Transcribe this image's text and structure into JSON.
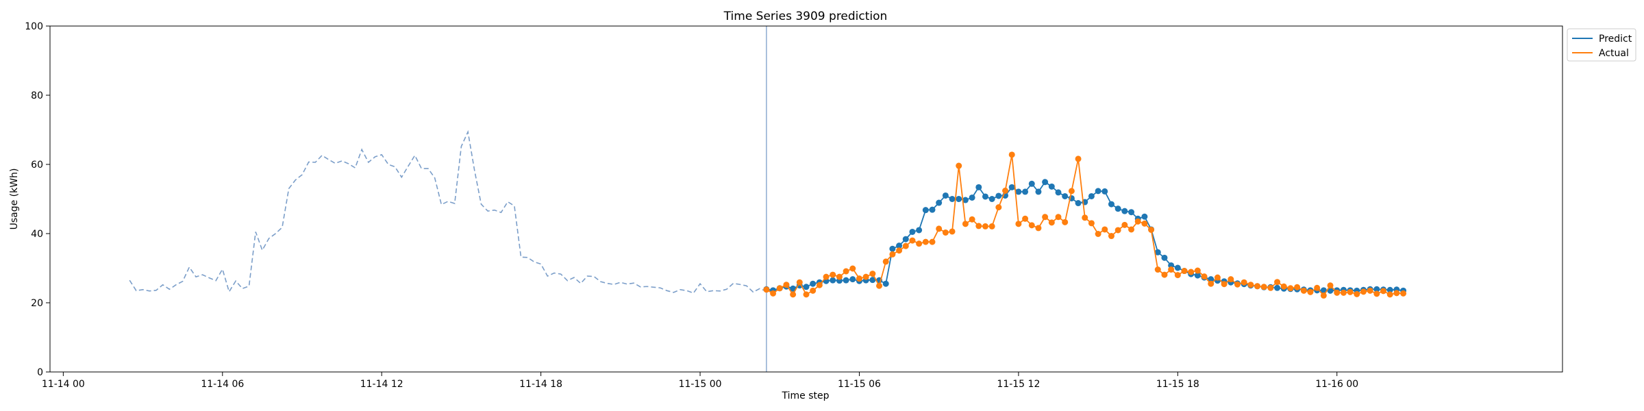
{
  "chart_data": {
    "type": "line",
    "title": "Time Series 3909 prediction",
    "xlabel": "Time step",
    "ylabel": "Usage (kWh)",
    "ylim": [
      0,
      100
    ],
    "xlim": [
      "2023-11-13T23:30",
      "2023-11-16T08:30"
    ],
    "yticks": [
      0,
      20,
      40,
      60,
      80,
      100
    ],
    "xticks": [
      {
        "label": "11-14 00",
        "t": "2023-11-14T00:00"
      },
      {
        "label": "11-14 06",
        "t": "2023-11-14T06:00"
      },
      {
        "label": "11-14 12",
        "t": "2023-11-14T12:00"
      },
      {
        "label": "11-14 18",
        "t": "2023-11-14T18:00"
      },
      {
        "label": "11-15 00",
        "t": "2023-11-15T00:00"
      },
      {
        "label": "11-15 06",
        "t": "2023-11-15T06:00"
      },
      {
        "label": "11-15 12",
        "t": "2023-11-15T12:00"
      },
      {
        "label": "11-15 18",
        "t": "2023-11-15T18:00"
      },
      {
        "label": "11-16 00",
        "t": "2023-11-16T00:00"
      }
    ],
    "grid": false,
    "legend_position": "top-right",
    "forecast_start": "2023-11-15T02:30",
    "history": {
      "start": "2023-11-14T02:30",
      "interval_minutes": 15,
      "color": "#7b9ec9",
      "style": "dashed",
      "values": [
        26.5,
        23.5,
        23.8,
        23.4,
        23.6,
        25.2,
        23.9,
        25.2,
        26.2,
        30.3,
        27.5,
        28.1,
        27.2,
        26.4,
        29.7,
        23.2,
        26.3,
        24.1,
        24.8,
        40.5,
        35.2,
        38.6,
        40,
        41.8,
        53,
        55.5,
        57,
        60.7,
        60.6,
        62.6,
        61.4,
        60.3,
        61,
        60.2,
        59,
        64.3,
        60.6,
        62.2,
        62.8,
        60,
        59.3,
        56.3,
        59.5,
        62.6,
        58.8,
        58.8,
        56.1,
        48.4,
        49.3,
        48.7,
        65.2,
        69.4,
        58.2,
        48.5,
        46.5,
        46.8,
        46.1,
        49.2,
        48,
        33.2,
        33.1,
        31.8,
        31.2,
        27.7,
        28.6,
        28.3,
        26.4,
        27.3,
        25.6,
        27.7,
        27.6,
        26.1,
        25.6,
        25.3,
        25.9,
        25.4,
        25.7,
        24.6,
        24.7,
        24.5,
        24.3,
        23.5,
        23,
        23.8,
        23.5,
        22.8,
        25.5,
        23.2,
        23.5,
        23.4,
        23.9,
        25.6,
        25.3,
        24.9,
        23.1,
        24.1,
        23.3,
        23.7
      ]
    },
    "series": [
      {
        "name": "Predict",
        "color": "#1f77b4",
        "start": "2023-11-15T02:30",
        "interval_minutes": 15,
        "values": [
          23.9,
          23.6,
          24.2,
          24.7,
          24.1,
          25,
          24.6,
          25.5,
          25.9,
          26.3,
          26.5,
          26.4,
          26.5,
          26.8,
          26.3,
          26.5,
          26.6,
          26.5,
          25.5,
          35.6,
          36.5,
          38.4,
          40.5,
          41,
          46.8,
          46.9,
          48.9,
          51,
          50,
          50,
          49.7,
          50.4,
          53.4,
          50.7,
          50,
          50.9,
          51,
          53.4,
          52.1,
          52.1,
          54.4,
          52.1,
          54.9,
          53.6,
          51.9,
          50.8,
          50.2,
          48.8,
          49.1,
          50.8,
          52.3,
          52.2,
          48.5,
          47.2,
          46.5,
          46.2,
          44.3,
          44.9,
          41.2,
          34.6,
          33,
          30.8,
          30.1,
          29.2,
          28.3,
          27.9,
          27.3,
          26.8,
          26.4,
          26.2,
          25.9,
          25.6,
          25.4,
          25,
          24.8,
          24.5,
          24.5,
          24.3,
          24.1,
          24,
          23.9,
          23.8,
          23.6,
          23.6,
          23.6,
          23.5,
          23.6,
          23.7,
          23.6,
          23.5,
          23.7,
          23.9,
          23.9,
          23.8,
          23.7,
          23.8,
          23.5
        ]
      },
      {
        "name": "Actual",
        "color": "#ff7f0e",
        "start": "2023-11-15T02:30",
        "interval_minutes": 15,
        "values": [
          23.8,
          22.7,
          24.2,
          25.2,
          22.4,
          25.9,
          22.4,
          23.5,
          25.1,
          27.5,
          28.1,
          27.5,
          29.1,
          29.9,
          27,
          27.5,
          28.4,
          24.9,
          31.9,
          34,
          35.1,
          36.4,
          38,
          37.1,
          37.6,
          37.6,
          41.4,
          40.3,
          40.6,
          59.6,
          42.8,
          44.1,
          42.2,
          42.1,
          42.1,
          47.6,
          52.4,
          62.8,
          42.8,
          44.3,
          42.4,
          41.6,
          44.8,
          43.2,
          44.8,
          43.3,
          52.3,
          61.6,
          44.6,
          43,
          39.9,
          41.2,
          39.3,
          41,
          42.5,
          41.2,
          43.5,
          42.9,
          41.1,
          29.6,
          28.1,
          29.6,
          28,
          29.2,
          28.9,
          29.3,
          27.6,
          25.5,
          27.3,
          25.4,
          26.8,
          25.3,
          25.9,
          25.2,
          24.8,
          24.6,
          24.3,
          26,
          24.7,
          24.2,
          24.5,
          23.5,
          23.1,
          24.3,
          22.1,
          25,
          22.9,
          22.9,
          23.1,
          22.5,
          23.2,
          23.5,
          22.6,
          23.4,
          22.4,
          22.8,
          22.7
        ]
      }
    ]
  }
}
